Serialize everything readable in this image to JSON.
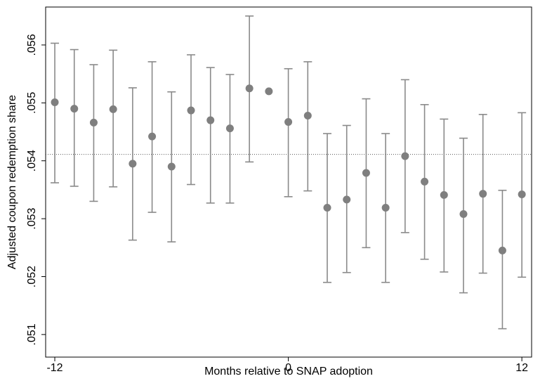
{
  "chart_data": {
    "type": "errorbar",
    "x_label": "Months relative to SNAP adoption",
    "y_label": "Adjusted coupon redemption share",
    "x": [
      -12,
      -11,
      -10,
      -9,
      -8,
      -7,
      -6,
      -5,
      -4,
      -3,
      -2,
      -1,
      0,
      1,
      2,
      3,
      4,
      5,
      6,
      7,
      8,
      9,
      10,
      11,
      12
    ],
    "values": [
      0.05501,
      0.0549,
      0.05466,
      0.05489,
      0.05395,
      0.05442,
      0.0539,
      0.05487,
      0.0547,
      0.05456,
      0.05525,
      0.0552,
      0.05467,
      0.05478,
      0.05319,
      0.05333,
      0.05379,
      0.05319,
      0.05408,
      0.05364,
      0.05341,
      0.05308,
      0.05343,
      0.05245,
      0.05342
    ],
    "upper": [
      0.05603,
      0.05592,
      0.05566,
      0.05591,
      0.05526,
      0.05571,
      0.05519,
      0.05583,
      0.05561,
      0.05549,
      0.0565,
      null,
      0.05559,
      0.05571,
      0.05447,
      0.05461,
      0.05507,
      0.05447,
      0.0554,
      0.05497,
      0.05472,
      0.05439,
      0.0548,
      0.05349,
      0.05483
    ],
    "lower": [
      0.05362,
      0.05356,
      0.0533,
      0.05355,
      0.05263,
      0.05311,
      0.0526,
      0.05359,
      0.05327,
      0.05327,
      0.05398,
      null,
      0.05338,
      0.05348,
      0.0519,
      0.05207,
      0.0525,
      0.0519,
      0.05276,
      0.0523,
      0.05208,
      0.05172,
      0.05206,
      0.0511,
      0.05199
    ],
    "reference_line": 0.05411,
    "color": "#7f7f7f",
    "bar_color": "#8a8a8a",
    "xlim": [
      -12.47,
      12.5
    ],
    "xticks": [
      -12,
      0,
      12
    ],
    "ylim": [
      0.05061,
      0.056655
    ],
    "yticks": [
      {
        "value": 0.051,
        "label": ".051"
      },
      {
        "value": 0.052,
        "label": ".052"
      },
      {
        "value": 0.053,
        "label": ".053"
      },
      {
        "value": 0.054,
        "label": ".054"
      },
      {
        "value": 0.055,
        "label": ".055"
      },
      {
        "value": 0.056,
        "label": ".056"
      }
    ]
  }
}
